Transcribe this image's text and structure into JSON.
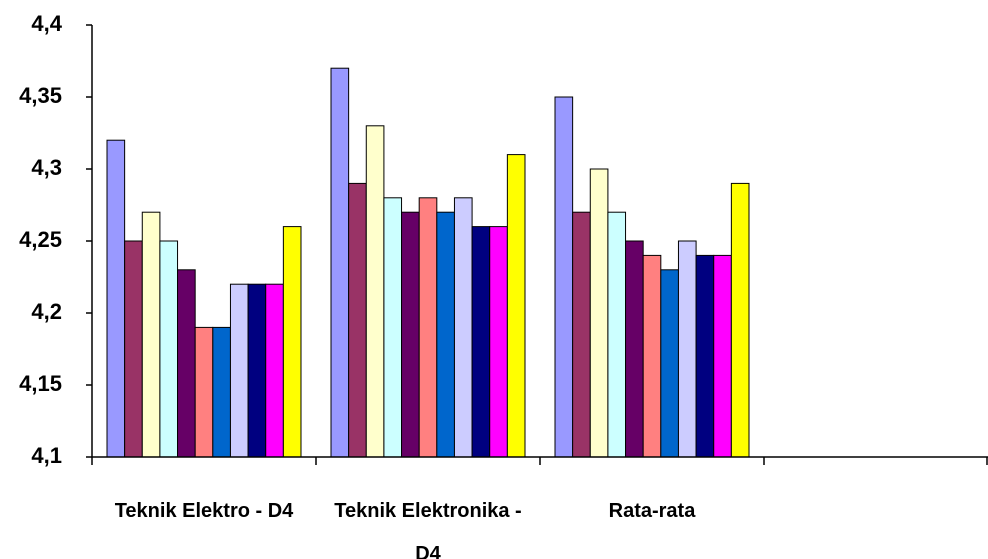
{
  "chart_data": {
    "type": "bar",
    "categories": [
      "Teknik Elektro - D4",
      "Teknik Elektronika -D4",
      "Rata-rata",
      null
    ],
    "series": [
      {
        "color": "#9999ff",
        "values": [
          4.32,
          4.37,
          4.35,
          null
        ]
      },
      {
        "color": "#993366",
        "values": [
          4.25,
          4.29,
          4.27,
          null
        ]
      },
      {
        "color": "#ffffcc",
        "values": [
          4.27,
          4.33,
          4.3,
          null
        ]
      },
      {
        "color": "#ccffff",
        "values": [
          4.25,
          4.28,
          4.27,
          null
        ]
      },
      {
        "color": "#660066",
        "values": [
          4.23,
          4.27,
          4.25,
          null
        ]
      },
      {
        "color": "#ff8080",
        "values": [
          4.19,
          4.28,
          4.24,
          null
        ]
      },
      {
        "color": "#0066cc",
        "values": [
          4.19,
          4.27,
          4.23,
          null
        ]
      },
      {
        "color": "#ccccff",
        "values": [
          4.22,
          4.28,
          4.25,
          null
        ]
      },
      {
        "color": "#000080",
        "values": [
          4.22,
          4.26,
          4.24,
          null
        ]
      },
      {
        "color": "#ff00ff",
        "values": [
          4.22,
          4.26,
          4.24,
          null
        ]
      },
      {
        "color": "#ffff00",
        "values": [
          4.26,
          4.31,
          4.29,
          null
        ]
      }
    ],
    "ylim": [
      4.1,
      4.4
    ],
    "yticks": [
      {
        "value": 4.1,
        "label": "4,1"
      },
      {
        "value": 4.15,
        "label": "4,15"
      },
      {
        "value": 4.2,
        "label": "4,2"
      },
      {
        "value": 4.25,
        "label": "4,25"
      },
      {
        "value": 4.3,
        "label": "4,3"
      },
      {
        "value": 4.35,
        "label": "4,35"
      },
      {
        "value": 4.4,
        "label": "4,4"
      }
    ]
  }
}
